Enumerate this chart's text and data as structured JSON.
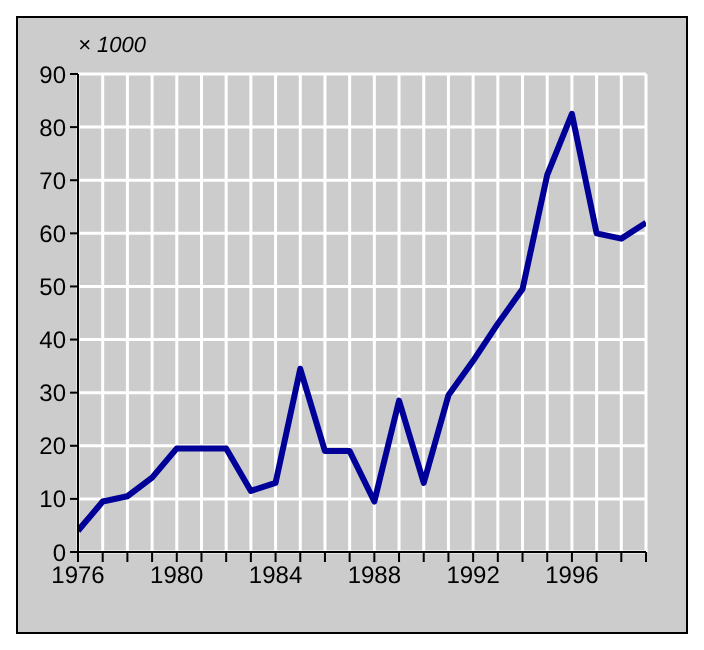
{
  "chart_data": {
    "type": "line",
    "ylabel": "× 1000",
    "x": [
      1976,
      1977,
      1978,
      1979,
      1980,
      1981,
      1982,
      1983,
      1984,
      1985,
      1986,
      1987,
      1988,
      1989,
      1990,
      1991,
      1992,
      1993,
      1994,
      1995,
      1996,
      1997,
      1998,
      1999
    ],
    "series": [
      {
        "color": "#000099",
        "values": [
          4,
          9.5,
          10.5,
          14,
          19.5,
          19.5,
          19.5,
          11.5,
          13,
          34.5,
          19,
          19,
          9.5,
          28.5,
          13,
          29.5,
          36,
          43,
          49.5,
          71,
          82.5,
          60,
          59,
          62
        ]
      }
    ],
    "xlim": [
      1976,
      1999
    ],
    "xticks": [
      1976,
      {
        "value": 1977,
        "label": null
      },
      {
        "value": 1978,
        "label": null
      },
      {
        "value": 1979,
        "label": null
      },
      1980,
      {
        "value": 1981,
        "label": null
      },
      {
        "value": 1982,
        "label": null
      },
      {
        "value": 1983,
        "label": null
      },
      1984,
      {
        "value": 1985,
        "label": null
      },
      {
        "value": 1986,
        "label": null
      },
      {
        "value": 1987,
        "label": null
      },
      1988,
      {
        "value": 1989,
        "label": null
      },
      {
        "value": 1990,
        "label": null
      },
      {
        "value": 1991,
        "label": null
      },
      1992,
      {
        "value": 1993,
        "label": null
      },
      {
        "value": 1994,
        "label": null
      },
      {
        "value": 1995,
        "label": null
      },
      1996,
      {
        "value": 1997,
        "label": null
      },
      {
        "value": 1998,
        "label": null
      },
      {
        "value": 1999,
        "label": null
      }
    ],
    "ylim": [
      0,
      90
    ],
    "yticks": [
      0,
      10,
      20,
      30,
      40,
      50,
      60,
      70,
      80,
      90
    ],
    "grid": true,
    "legend": false,
    "marker": "none",
    "line_style": "solid"
  }
}
